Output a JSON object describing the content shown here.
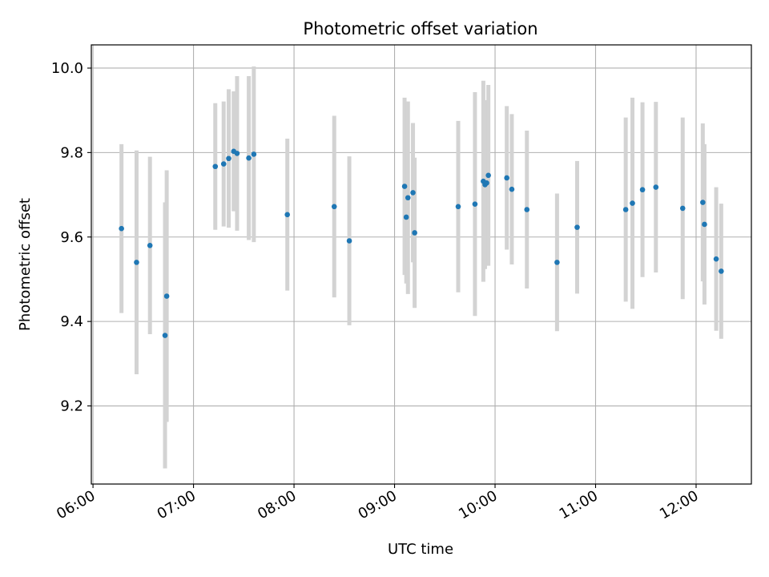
{
  "chart_data": {
    "type": "scatter",
    "title": "Photometric offset variation",
    "xlabel": "UTC time",
    "ylabel": "Photometric offset",
    "x_tick_labels": [
      "06:00",
      "07:00",
      "08:00",
      "09:00",
      "10:00",
      "11:00",
      "12:00"
    ],
    "x_ticks": [
      "06:00",
      "07:00",
      "08:00",
      "09:00",
      "10:00",
      "11:00",
      "12:00"
    ],
    "y_ticks": [
      9.2,
      9.4,
      9.6,
      9.8,
      10.0
    ],
    "y_tick_labels": [
      "9.2",
      "9.4",
      "9.6",
      "9.8",
      "10.0"
    ],
    "xlim": [
      "05:59",
      "12:33"
    ],
    "ylim": [
      9.015,
      10.055
    ],
    "grid": true,
    "marker_color": "#1f77b4",
    "errorbar_color": "#d3d3d3",
    "points": [
      {
        "x": "06:17",
        "y": 9.62,
        "err": 0.2
      },
      {
        "x": "06:26",
        "y": 9.54,
        "err": 0.265
      },
      {
        "x": "06:34",
        "y": 9.58,
        "err": 0.21
      },
      {
        "x": "06:43",
        "y": 9.367,
        "err": 0.315
      },
      {
        "x": "06:44",
        "y": 9.46,
        "err": 0.298
      },
      {
        "x": "07:13",
        "y": 9.767,
        "err": 0.15
      },
      {
        "x": "07:18",
        "y": 9.773,
        "err": 0.148
      },
      {
        "x": "07:21",
        "y": 9.786,
        "err": 0.164
      },
      {
        "x": "07:24",
        "y": 9.803,
        "err": 0.142
      },
      {
        "x": "07:26",
        "y": 9.798,
        "err": 0.183
      },
      {
        "x": "07:33",
        "y": 9.787,
        "err": 0.194
      },
      {
        "x": "07:36",
        "y": 9.796,
        "err": 0.208
      },
      {
        "x": "07:56",
        "y": 9.653,
        "err": 0.18
      },
      {
        "x": "08:24",
        "y": 9.672,
        "err": 0.215
      },
      {
        "x": "08:33",
        "y": 9.591,
        "err": 0.2
      },
      {
        "x": "09:06",
        "y": 9.72,
        "err": 0.21
      },
      {
        "x": "09:07",
        "y": 9.647,
        "err": 0.157
      },
      {
        "x": "09:08",
        "y": 9.693,
        "err": 0.228
      },
      {
        "x": "09:11",
        "y": 9.705,
        "err": 0.165
      },
      {
        "x": "09:12",
        "y": 9.61,
        "err": 0.178
      },
      {
        "x": "09:38",
        "y": 9.672,
        "err": 0.203
      },
      {
        "x": "09:48",
        "y": 9.678,
        "err": 0.265
      },
      {
        "x": "09:53",
        "y": 9.732,
        "err": 0.238
      },
      {
        "x": "09:54",
        "y": 9.724,
        "err": 0.2
      },
      {
        "x": "09:55",
        "y": 9.728,
        "err": 0.185
      },
      {
        "x": "09:56",
        "y": 9.746,
        "err": 0.214
      },
      {
        "x": "10:07",
        "y": 9.74,
        "err": 0.17
      },
      {
        "x": "10:10",
        "y": 9.713,
        "err": 0.178
      },
      {
        "x": "10:19",
        "y": 9.665,
        "err": 0.187
      },
      {
        "x": "10:37",
        "y": 9.54,
        "err": 0.163
      },
      {
        "x": "10:49",
        "y": 9.623,
        "err": 0.157
      },
      {
        "x": "11:18",
        "y": 9.665,
        "err": 0.218
      },
      {
        "x": "11:22",
        "y": 9.68,
        "err": 0.25
      },
      {
        "x": "11:28",
        "y": 9.712,
        "err": 0.207
      },
      {
        "x": "11:36",
        "y": 9.718,
        "err": 0.202
      },
      {
        "x": "11:52",
        "y": 9.668,
        "err": 0.215
      },
      {
        "x": "12:04",
        "y": 9.682,
        "err": 0.187
      },
      {
        "x": "12:05",
        "y": 9.63,
        "err": 0.19
      },
      {
        "x": "12:12",
        "y": 9.548,
        "err": 0.17
      },
      {
        "x": "12:15",
        "y": 9.519,
        "err": 0.16
      }
    ]
  }
}
